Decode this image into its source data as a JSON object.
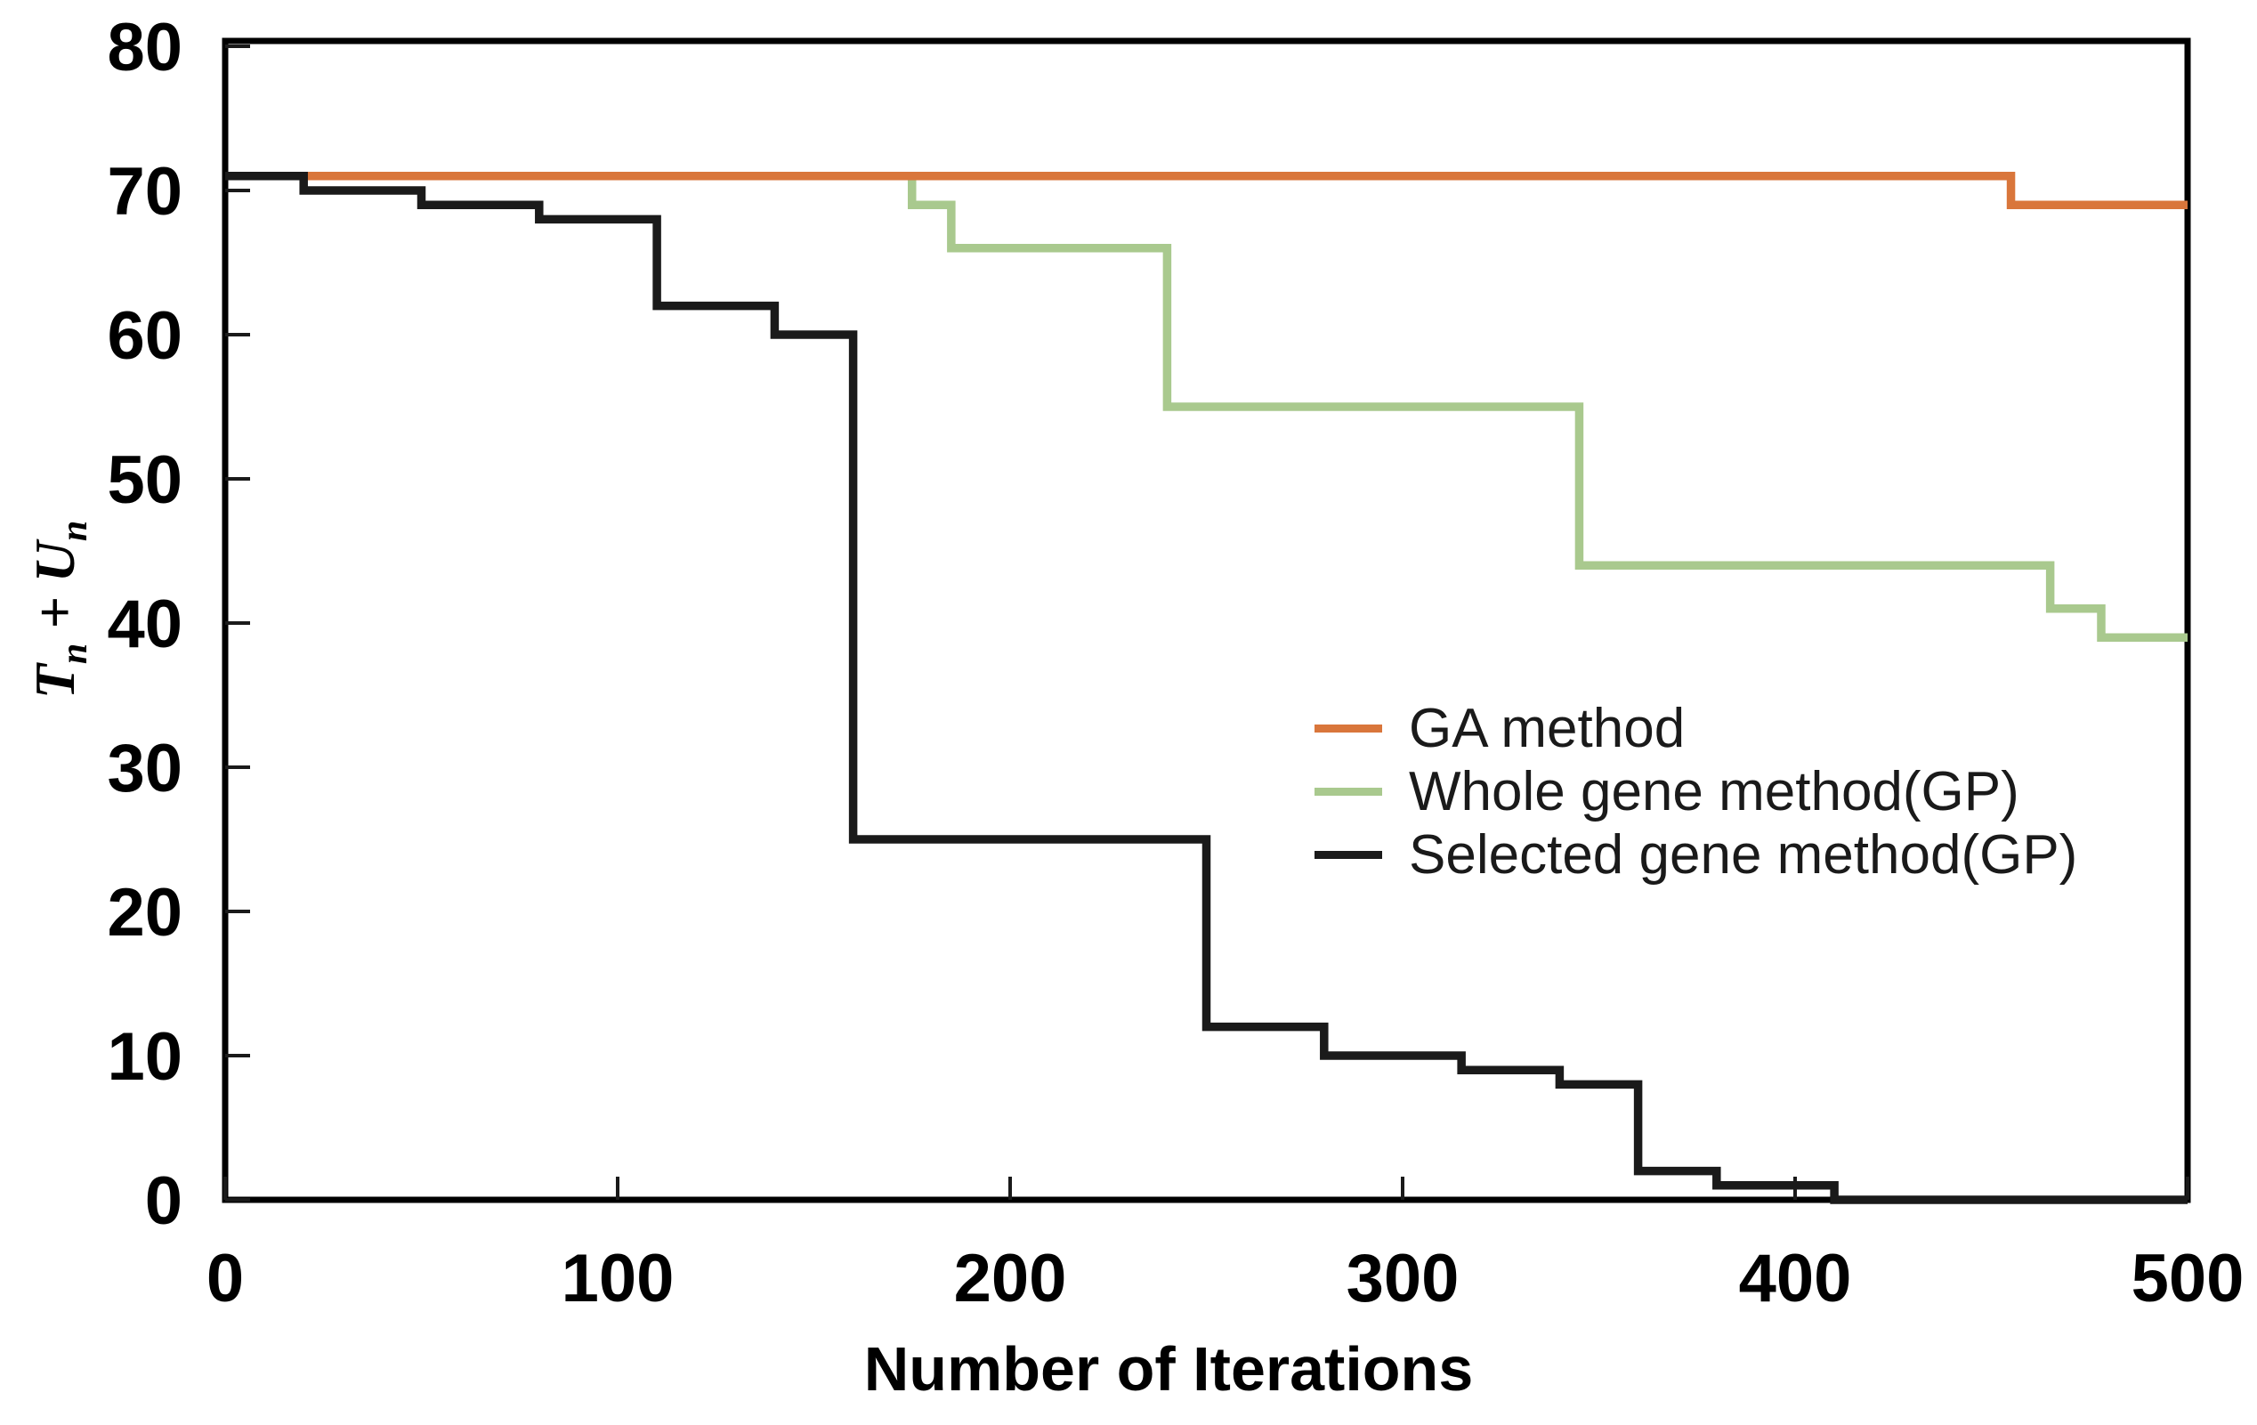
{
  "chart_data": {
    "type": "line",
    "line_style": "step-after",
    "title": "",
    "xlabel": "Number of Iterations",
    "ylabel": "Tn + Un",
    "ylabel_parts": {
      "t": "T",
      "n1": "n",
      "plus": " + ",
      "u": "U",
      "n2": "n"
    },
    "xlim": [
      0,
      500
    ],
    "ylim": [
      0,
      80
    ],
    "x_ticks": [
      0,
      100,
      200,
      300,
      400,
      500
    ],
    "y_ticks": [
      0,
      10,
      20,
      30,
      40,
      50,
      60,
      70,
      80
    ],
    "grid": false,
    "legend_position": "center-right inside plot",
    "series": [
      {
        "name": "GA method",
        "color": "#D9763B",
        "points": [
          [
            0,
            71
          ],
          [
            455,
            69
          ]
        ],
        "x_end": 500
      },
      {
        "name": "Whole gene method(GP)",
        "color": "#A9C98E",
        "points": [
          [
            0,
            71
          ],
          [
            175,
            69
          ],
          [
            185,
            66
          ],
          [
            240,
            55
          ],
          [
            345,
            44
          ],
          [
            465,
            41
          ],
          [
            478,
            39
          ]
        ],
        "x_end": 500
      },
      {
        "name": "Selected gene method(GP)",
        "color": "#1A1A1A",
        "points": [
          [
            0,
            71
          ],
          [
            20,
            70
          ],
          [
            50,
            69
          ],
          [
            80,
            68
          ],
          [
            110,
            62
          ],
          [
            140,
            60
          ],
          [
            160,
            25
          ],
          [
            250,
            12
          ],
          [
            280,
            10
          ],
          [
            315,
            9
          ],
          [
            340,
            8
          ],
          [
            360,
            2
          ],
          [
            380,
            1
          ],
          [
            410,
            0
          ]
        ],
        "x_end": 500
      }
    ]
  },
  "legend": {
    "items": [
      {
        "label": "GA method",
        "color": "#D9763B"
      },
      {
        "label": "Whole gene method(GP)",
        "color": "#A9C98E"
      },
      {
        "label": "Selected gene method(GP)",
        "color": "#1A1A1A"
      }
    ]
  },
  "colors": {
    "axis": "#000000",
    "tick": "#1a1a1a",
    "background": "#ffffff"
  }
}
